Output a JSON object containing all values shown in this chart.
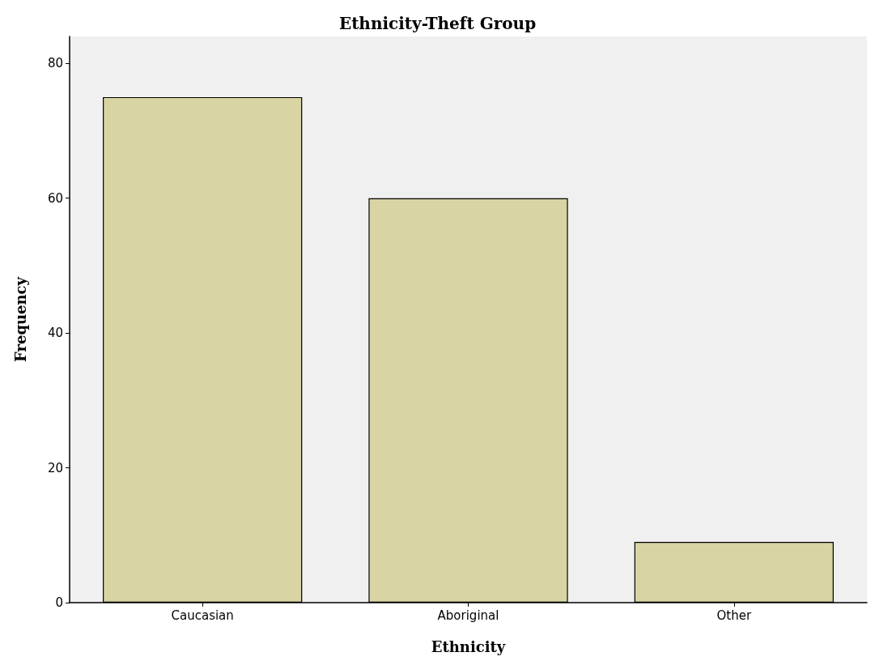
{
  "chart_data": {
    "type": "bar",
    "title": "Ethnicity-Theft Group",
    "xlabel": "Ethnicity",
    "ylabel": "Frequency",
    "categories": [
      "Caucasian",
      "Aboriginal",
      "Other"
    ],
    "values": [
      75,
      60,
      9
    ],
    "color": "#d8d4a4",
    "ylim": [
      0,
      84
    ],
    "yticks": [
      0,
      20,
      40,
      60,
      80
    ],
    "grid": false
  }
}
